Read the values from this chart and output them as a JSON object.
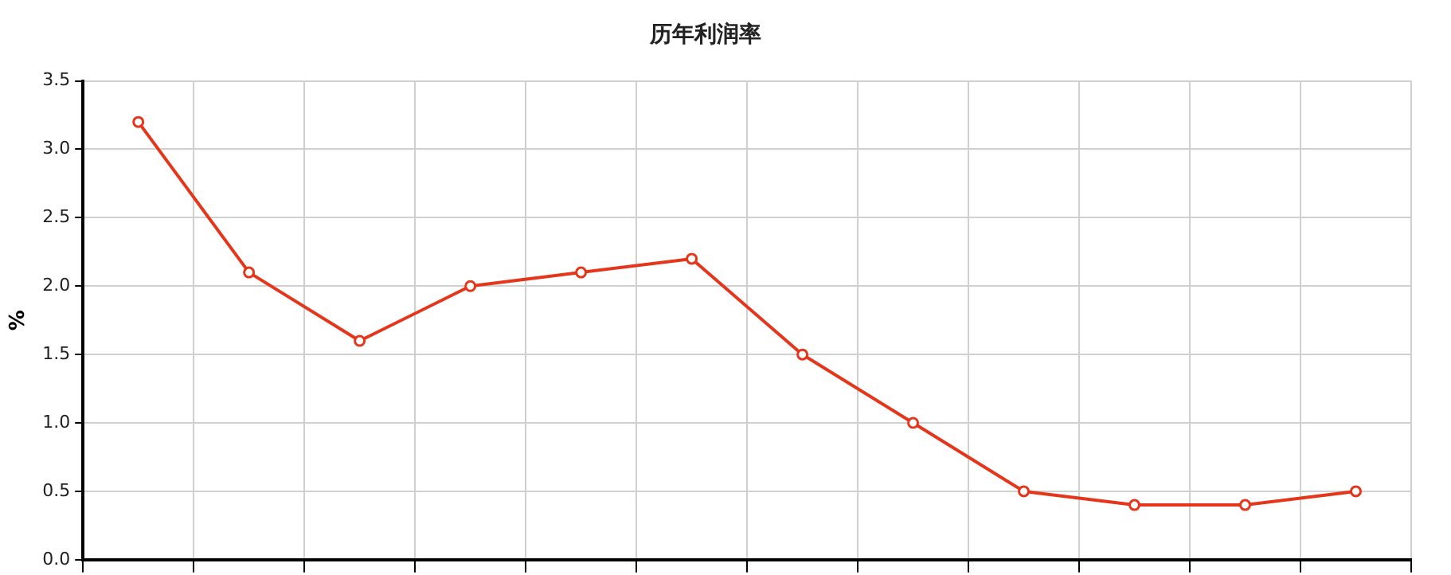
{
  "chart_data": {
    "type": "line",
    "title": "历年利润率",
    "ylabel": "%",
    "categories": [
      null,
      null,
      null,
      null,
      null,
      null,
      null,
      null,
      null,
      null,
      null,
      null
    ],
    "series": [
      {
        "color": "#e5361b",
        "values": [
          3.2,
          2.1,
          1.6,
          2.0,
          2.1,
          2.2,
          1.5,
          1.0,
          0.5,
          0.4,
          0.4,
          0.5
        ]
      }
    ],
    "ylim": [
      0,
      3.5
    ],
    "yticks": [
      {
        "value": 0,
        "label": "0.0"
      },
      {
        "value": 0.5,
        "label": "0.5"
      },
      {
        "value": 1,
        "label": "1.0"
      },
      {
        "value": 1.5,
        "label": "1.5"
      },
      {
        "value": 2,
        "label": "2.0"
      },
      {
        "value": 2.5,
        "label": "2.5"
      },
      {
        "value": 3,
        "label": "3.0"
      },
      {
        "value": 3.5,
        "label": "3.5"
      }
    ],
    "grid": true,
    "marker": "circle",
    "line_style": "solid",
    "tick_labels": "y"
  }
}
